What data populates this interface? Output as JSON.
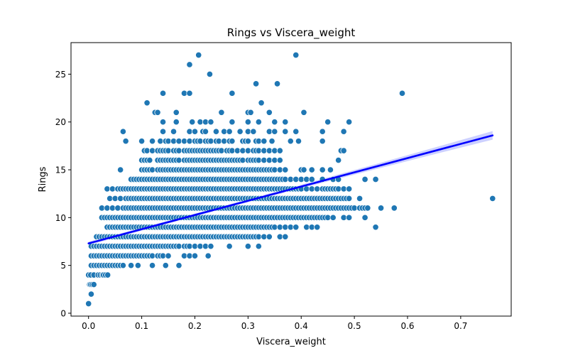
{
  "chart_data": {
    "type": "scatter",
    "title": "Rings vs Viscera_weight",
    "xlabel": "Viscera_weight",
    "ylabel": "Rings",
    "xlim": [
      -0.033,
      0.795
    ],
    "ylim": [
      -0.3,
      28.3
    ],
    "xticks": [
      0.0,
      0.1,
      0.2,
      0.3,
      0.4,
      0.5,
      0.6,
      0.7
    ],
    "xtick_labels": [
      "0.0",
      "0.1",
      "0.2",
      "0.3",
      "0.4",
      "0.5",
      "0.6",
      "0.7"
    ],
    "yticks": [
      0,
      5,
      10,
      15,
      20,
      25
    ],
    "ytick_labels": [
      "0",
      "5",
      "10",
      "15",
      "20",
      "25"
    ],
    "grid": false,
    "colors": {
      "points": "#1f77b4",
      "regression_line": "#0000ff",
      "confidence_band": "#aab0ff"
    },
    "regression": {
      "x": [
        0.0,
        0.76
      ],
      "y": [
        7.3,
        18.6
      ],
      "ci_halfwidth": [
        0.15,
        0.45
      ]
    },
    "groups": [
      {
        "y": 1,
        "x": [
          0.0
        ]
      },
      {
        "y": 2,
        "x": [
          0.005
        ]
      },
      {
        "y": 3,
        "x": [
          0.002,
          0.004,
          0.007,
          0.01
        ]
      },
      {
        "y": 4,
        "x": [
          0.0,
          0.004,
          0.01,
          0.018,
          0.022,
          0.026,
          0.028,
          0.032,
          0.036
        ]
      },
      {
        "y": 5,
        "x": [
          0.005,
          0.01,
          0.015,
          0.02,
          0.025,
          0.03,
          0.035,
          0.04,
          0.045,
          0.05,
          0.055,
          0.06,
          0.065,
          0.08,
          0.093,
          0.12,
          0.145,
          0.17
        ]
      },
      {
        "y": 6,
        "x": [
          0.005,
          0.01,
          0.015,
          0.02,
          0.025,
          0.03,
          0.035,
          0.04,
          0.045,
          0.05,
          0.055,
          0.06,
          0.065,
          0.07,
          0.075,
          0.08,
          0.085,
          0.09,
          0.095,
          0.1,
          0.105,
          0.11,
          0.115,
          0.12,
          0.13,
          0.135,
          0.14,
          0.15,
          0.18,
          0.19,
          0.2,
          0.225
        ]
      },
      {
        "y": 7,
        "x": [
          0.005,
          0.01,
          0.015,
          0.02,
          0.025,
          0.03,
          0.035,
          0.04,
          0.045,
          0.05,
          0.055,
          0.06,
          0.065,
          0.07,
          0.075,
          0.08,
          0.085,
          0.09,
          0.095,
          0.1,
          0.105,
          0.11,
          0.115,
          0.12,
          0.125,
          0.13,
          0.135,
          0.14,
          0.145,
          0.15,
          0.155,
          0.16,
          0.165,
          0.17,
          0.18,
          0.185,
          0.19,
          0.2,
          0.21,
          0.22,
          0.23,
          0.265,
          0.3,
          0.32
        ]
      },
      {
        "y": 8,
        "x": [
          0.015,
          0.02,
          0.025,
          0.03,
          0.035,
          0.04,
          0.045,
          0.05,
          0.055,
          0.06,
          0.065,
          0.07,
          0.075,
          0.08,
          0.085,
          0.09,
          0.095,
          0.1,
          0.105,
          0.11,
          0.115,
          0.12,
          0.125,
          0.13,
          0.135,
          0.14,
          0.145,
          0.15,
          0.155,
          0.16,
          0.165,
          0.17,
          0.175,
          0.18,
          0.185,
          0.19,
          0.195,
          0.2,
          0.205,
          0.21,
          0.215,
          0.22,
          0.225,
          0.23,
          0.235,
          0.24,
          0.245,
          0.25,
          0.255,
          0.26,
          0.265,
          0.27,
          0.275,
          0.28,
          0.285,
          0.29,
          0.295,
          0.3,
          0.305,
          0.31,
          0.315,
          0.32,
          0.33,
          0.34,
          0.36,
          0.37
        ]
      },
      {
        "y": 9,
        "x": [
          0.035,
          0.04,
          0.045,
          0.05,
          0.055,
          0.06,
          0.065,
          0.07,
          0.075,
          0.08,
          0.085,
          0.09,
          0.095,
          0.1,
          0.105,
          0.11,
          0.115,
          0.12,
          0.125,
          0.13,
          0.135,
          0.14,
          0.145,
          0.15,
          0.155,
          0.16,
          0.165,
          0.17,
          0.175,
          0.18,
          0.185,
          0.19,
          0.195,
          0.2,
          0.205,
          0.21,
          0.215,
          0.22,
          0.225,
          0.23,
          0.235,
          0.24,
          0.245,
          0.25,
          0.255,
          0.26,
          0.265,
          0.27,
          0.275,
          0.28,
          0.285,
          0.29,
          0.295,
          0.3,
          0.305,
          0.31,
          0.315,
          0.32,
          0.325,
          0.33,
          0.335,
          0.34,
          0.345,
          0.35,
          0.36,
          0.37,
          0.38,
          0.39,
          0.41,
          0.42,
          0.43,
          0.54
        ]
      },
      {
        "y": 10,
        "x": [
          0.025,
          0.03,
          0.035,
          0.04,
          0.045,
          0.05,
          0.055,
          0.06,
          0.065,
          0.07,
          0.075,
          0.08,
          0.085,
          0.09,
          0.095,
          0.1,
          0.105,
          0.11,
          0.115,
          0.12,
          0.125,
          0.13,
          0.135,
          0.14,
          0.145,
          0.15,
          0.155,
          0.16,
          0.165,
          0.17,
          0.175,
          0.18,
          0.185,
          0.19,
          0.195,
          0.2,
          0.205,
          0.21,
          0.215,
          0.22,
          0.225,
          0.23,
          0.235,
          0.24,
          0.245,
          0.25,
          0.255,
          0.26,
          0.265,
          0.27,
          0.275,
          0.28,
          0.285,
          0.29,
          0.295,
          0.3,
          0.305,
          0.31,
          0.315,
          0.32,
          0.325,
          0.33,
          0.335,
          0.34,
          0.345,
          0.35,
          0.355,
          0.36,
          0.365,
          0.37,
          0.375,
          0.38,
          0.385,
          0.39,
          0.395,
          0.4,
          0.405,
          0.41,
          0.415,
          0.42,
          0.425,
          0.43,
          0.435,
          0.44,
          0.445,
          0.45,
          0.46,
          0.48,
          0.49,
          0.52
        ]
      },
      {
        "y": 11,
        "x": [
          0.025,
          0.035,
          0.045,
          0.055,
          0.065,
          0.07,
          0.075,
          0.08,
          0.085,
          0.09,
          0.095,
          0.1,
          0.105,
          0.11,
          0.115,
          0.12,
          0.125,
          0.13,
          0.135,
          0.14,
          0.145,
          0.15,
          0.155,
          0.16,
          0.165,
          0.17,
          0.175,
          0.18,
          0.185,
          0.19,
          0.195,
          0.2,
          0.205,
          0.21,
          0.215,
          0.22,
          0.225,
          0.23,
          0.235,
          0.24,
          0.245,
          0.25,
          0.255,
          0.26,
          0.265,
          0.27,
          0.275,
          0.28,
          0.285,
          0.29,
          0.295,
          0.3,
          0.305,
          0.31,
          0.315,
          0.32,
          0.325,
          0.33,
          0.335,
          0.34,
          0.345,
          0.35,
          0.355,
          0.36,
          0.365,
          0.37,
          0.375,
          0.38,
          0.385,
          0.39,
          0.395,
          0.4,
          0.405,
          0.41,
          0.415,
          0.42,
          0.425,
          0.43,
          0.435,
          0.44,
          0.445,
          0.45,
          0.455,
          0.46,
          0.465,
          0.47,
          0.475,
          0.48,
          0.485,
          0.49,
          0.495,
          0.5,
          0.51,
          0.515,
          0.52,
          0.525,
          0.55,
          0.575
        ]
      },
      {
        "y": 12,
        "x": [
          0.04,
          0.05,
          0.06,
          0.07,
          0.075,
          0.08,
          0.085,
          0.09,
          0.095,
          0.1,
          0.105,
          0.11,
          0.115,
          0.12,
          0.125,
          0.13,
          0.135,
          0.14,
          0.145,
          0.15,
          0.155,
          0.16,
          0.165,
          0.17,
          0.175,
          0.18,
          0.185,
          0.19,
          0.195,
          0.2,
          0.205,
          0.21,
          0.215,
          0.22,
          0.225,
          0.23,
          0.235,
          0.24,
          0.245,
          0.25,
          0.255,
          0.26,
          0.265,
          0.27,
          0.275,
          0.28,
          0.285,
          0.29,
          0.295,
          0.3,
          0.305,
          0.31,
          0.315,
          0.32,
          0.325,
          0.33,
          0.335,
          0.34,
          0.345,
          0.35,
          0.355,
          0.36,
          0.365,
          0.37,
          0.375,
          0.38,
          0.385,
          0.39,
          0.395,
          0.4,
          0.405,
          0.41,
          0.415,
          0.42,
          0.425,
          0.43,
          0.435,
          0.44,
          0.445,
          0.45,
          0.455,
          0.46,
          0.465,
          0.47,
          0.475,
          0.48,
          0.485,
          0.49,
          0.51,
          0.76
        ]
      },
      {
        "y": 13,
        "x": [
          0.035,
          0.045,
          0.055,
          0.06,
          0.065,
          0.07,
          0.075,
          0.08,
          0.085,
          0.09,
          0.095,
          0.1,
          0.105,
          0.11,
          0.115,
          0.12,
          0.125,
          0.13,
          0.135,
          0.14,
          0.145,
          0.15,
          0.155,
          0.16,
          0.165,
          0.17,
          0.175,
          0.18,
          0.185,
          0.19,
          0.195,
          0.2,
          0.205,
          0.21,
          0.215,
          0.22,
          0.225,
          0.23,
          0.235,
          0.24,
          0.245,
          0.25,
          0.255,
          0.26,
          0.265,
          0.27,
          0.275,
          0.28,
          0.285,
          0.29,
          0.295,
          0.3,
          0.305,
          0.31,
          0.315,
          0.32,
          0.325,
          0.33,
          0.335,
          0.34,
          0.345,
          0.35,
          0.355,
          0.36,
          0.365,
          0.37,
          0.375,
          0.38,
          0.385,
          0.39,
          0.395,
          0.4,
          0.41,
          0.42,
          0.43,
          0.44,
          0.445,
          0.45,
          0.455,
          0.46,
          0.465,
          0.47,
          0.48,
          0.49
        ]
      },
      {
        "y": 14,
        "x": [
          0.08,
          0.085,
          0.09,
          0.095,
          0.1,
          0.105,
          0.11,
          0.115,
          0.12,
          0.125,
          0.13,
          0.135,
          0.14,
          0.145,
          0.15,
          0.155,
          0.16,
          0.165,
          0.17,
          0.175,
          0.18,
          0.185,
          0.19,
          0.195,
          0.2,
          0.205,
          0.21,
          0.215,
          0.22,
          0.225,
          0.23,
          0.235,
          0.24,
          0.245,
          0.25,
          0.255,
          0.26,
          0.265,
          0.27,
          0.275,
          0.28,
          0.285,
          0.29,
          0.295,
          0.3,
          0.305,
          0.31,
          0.315,
          0.32,
          0.325,
          0.33,
          0.335,
          0.34,
          0.345,
          0.35,
          0.355,
          0.36,
          0.365,
          0.37,
          0.38,
          0.39,
          0.4,
          0.41,
          0.42,
          0.44,
          0.46,
          0.47,
          0.52,
          0.54
        ]
      },
      {
        "y": 15,
        "x": [
          0.06,
          0.1,
          0.105,
          0.11,
          0.115,
          0.12,
          0.13,
          0.135,
          0.14,
          0.145,
          0.15,
          0.155,
          0.16,
          0.165,
          0.17,
          0.175,
          0.18,
          0.185,
          0.19,
          0.195,
          0.2,
          0.205,
          0.21,
          0.215,
          0.22,
          0.225,
          0.23,
          0.235,
          0.24,
          0.245,
          0.25,
          0.255,
          0.26,
          0.265,
          0.27,
          0.275,
          0.28,
          0.285,
          0.29,
          0.295,
          0.3,
          0.305,
          0.31,
          0.315,
          0.32,
          0.325,
          0.33,
          0.335,
          0.34,
          0.345,
          0.35,
          0.36,
          0.37,
          0.4,
          0.405,
          0.42,
          0.44,
          0.455
        ]
      },
      {
        "y": 16,
        "x": [
          0.1,
          0.105,
          0.11,
          0.115,
          0.13,
          0.135,
          0.14,
          0.145,
          0.15,
          0.155,
          0.16,
          0.165,
          0.17,
          0.18,
          0.185,
          0.19,
          0.195,
          0.2,
          0.205,
          0.21,
          0.215,
          0.22,
          0.225,
          0.23,
          0.235,
          0.24,
          0.245,
          0.25,
          0.255,
          0.26,
          0.265,
          0.27,
          0.275,
          0.28,
          0.285,
          0.29,
          0.3,
          0.305,
          0.31,
          0.315,
          0.32,
          0.33,
          0.34,
          0.35,
          0.36,
          0.47
        ]
      },
      {
        "y": 17,
        "x": [
          0.105,
          0.11,
          0.12,
          0.13,
          0.135,
          0.14,
          0.145,
          0.15,
          0.16,
          0.165,
          0.17,
          0.18,
          0.185,
          0.19,
          0.195,
          0.2,
          0.205,
          0.21,
          0.215,
          0.22,
          0.225,
          0.23,
          0.235,
          0.24,
          0.245,
          0.25,
          0.26,
          0.265,
          0.27,
          0.28,
          0.29,
          0.3,
          0.31,
          0.315,
          0.32,
          0.33,
          0.34,
          0.35,
          0.36,
          0.475,
          0.48
        ]
      },
      {
        "y": 18,
        "x": [
          0.07,
          0.1,
          0.12,
          0.135,
          0.145,
          0.15,
          0.16,
          0.17,
          0.18,
          0.19,
          0.2,
          0.205,
          0.21,
          0.22,
          0.225,
          0.23,
          0.24,
          0.245,
          0.255,
          0.265,
          0.27,
          0.29,
          0.295,
          0.3,
          0.315,
          0.32,
          0.33,
          0.345,
          0.38,
          0.395,
          0.44
        ]
      },
      {
        "y": 19,
        "x": [
          0.065,
          0.14,
          0.16,
          0.19,
          0.2,
          0.215,
          0.22,
          0.24,
          0.255,
          0.265,
          0.285,
          0.3,
          0.31,
          0.34,
          0.35,
          0.37,
          0.39,
          0.44,
          0.48
        ]
      },
      {
        "y": 20,
        "x": [
          0.14,
          0.165,
          0.195,
          0.21,
          0.22,
          0.23,
          0.27,
          0.3,
          0.32,
          0.35,
          0.37,
          0.45,
          0.49
        ]
      },
      {
        "y": 21,
        "x": [
          0.125,
          0.13,
          0.165,
          0.25,
          0.3,
          0.305,
          0.34,
          0.405
        ]
      },
      {
        "y": 22,
        "x": [
          0.11,
          0.325
        ]
      },
      {
        "y": 23,
        "x": [
          0.14,
          0.18,
          0.19,
          0.27,
          0.59
        ]
      },
      {
        "y": 24,
        "x": [
          0.315,
          0.355
        ]
      },
      {
        "y": 25,
        "x": [
          0.228
        ]
      },
      {
        "y": 26,
        "x": [
          0.19
        ]
      },
      {
        "y": 27,
        "x": [
          0.207,
          0.39
        ]
      }
    ]
  }
}
